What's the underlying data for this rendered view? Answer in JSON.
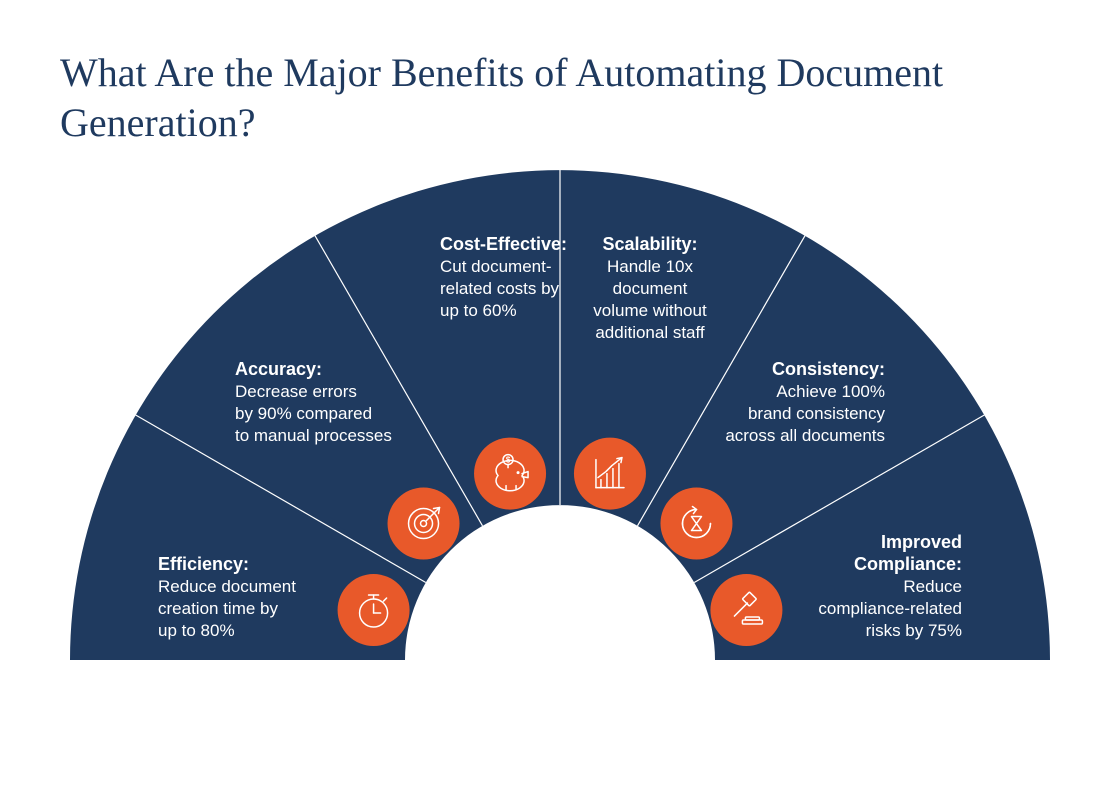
{
  "title": "What Are the Major Benefits of Automating Document Generation?",
  "chart": {
    "type": "semicircle-segments",
    "background_color": "#ffffff",
    "arc_fill": "#1f3a5f",
    "divider_color": "#ffffff",
    "icon_circle_fill": "#e8592a",
    "icon_stroke": "#ffffff",
    "title_color": "#1f3a5f",
    "title_fontsize": 40,
    "text_color": "#ffffff",
    "seg_title_fontsize": 18,
    "seg_desc_fontsize": 17,
    "outer_radius": 490,
    "inner_radius": 155,
    "icon_circle_radius": 36,
    "segments": [
      {
        "key": "efficiency",
        "title": "Efficiency:",
        "desc_lines": [
          "Reduce document",
          "creation time by",
          "up to 80%"
        ],
        "icon": "stopwatch"
      },
      {
        "key": "accuracy",
        "title": "Accuracy:",
        "desc_lines": [
          "Decrease errors",
          "by 90% compared",
          "to manual processes"
        ],
        "icon": "target"
      },
      {
        "key": "cost",
        "title": "Cost-Effective:",
        "desc_lines": [
          "Cut document-",
          "related costs by",
          "up to 60%"
        ],
        "icon": "piggy-bank"
      },
      {
        "key": "scalability",
        "title": "Scalability:",
        "desc_lines": [
          "Handle 10x",
          "document",
          "volume without",
          "additional staff"
        ],
        "icon": "growth-chart"
      },
      {
        "key": "consistency",
        "title": "Consistency:",
        "desc_lines": [
          "Achieve 100%",
          "brand consistency",
          "across all documents"
        ],
        "icon": "cycle"
      },
      {
        "key": "compliance",
        "title_lines": [
          "Improved",
          "Compliance:"
        ],
        "desc_lines": [
          "Reduce",
          "compliance-related",
          "risks by 75%"
        ],
        "icon": "gavel"
      }
    ]
  }
}
